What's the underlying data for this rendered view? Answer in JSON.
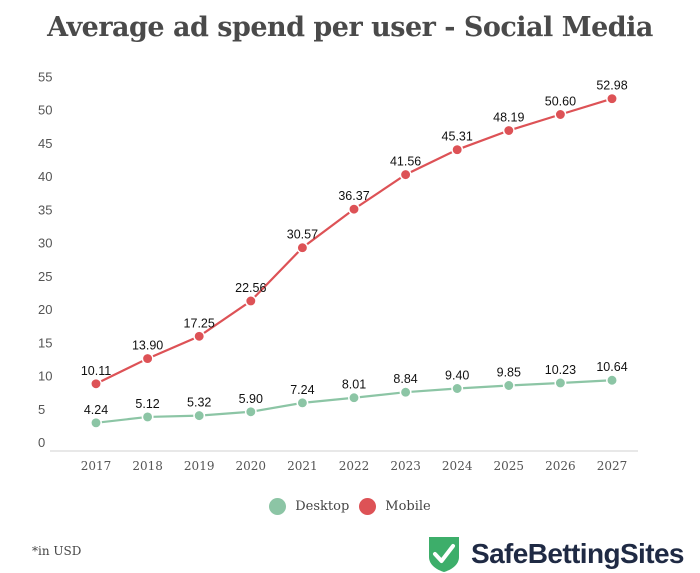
{
  "chart_data": {
    "type": "line",
    "title": "Average ad spend per user - Social Media",
    "xlabel": "",
    "ylabel": "",
    "categories": [
      "2017",
      "2018",
      "2019",
      "2020",
      "2021",
      "2022",
      "2023",
      "2024",
      "2025",
      "2026",
      "2027"
    ],
    "ylim": [
      0,
      55
    ],
    "yticks": [
      "0",
      "5",
      "10",
      "15",
      "20",
      "25",
      "30",
      "35",
      "40",
      "45",
      "50",
      "55"
    ],
    "ytick_values": [
      0,
      5,
      10,
      15,
      20,
      25,
      30,
      35,
      40,
      45,
      50,
      55
    ],
    "grid": false,
    "legend_position": "bottom-center",
    "series": [
      {
        "name": "Desktop",
        "color": "#8cc5a5",
        "values": [
          4.24,
          5.12,
          5.32,
          5.9,
          7.24,
          8.01,
          8.84,
          9.4,
          9.85,
          10.23,
          10.64
        ],
        "labels": [
          "4.24",
          "5.12",
          "5.32",
          "5.90",
          "7.24",
          "8.01",
          "8.84",
          "9.40",
          "9.85",
          "10.23",
          "10.64"
        ]
      },
      {
        "name": "Mobile",
        "color": "#dd5256",
        "values": [
          10.11,
          13.9,
          17.25,
          22.56,
          30.57,
          36.37,
          41.56,
          45.31,
          48.19,
          50.6,
          52.98
        ],
        "labels": [
          "10.11",
          "13.90",
          "17.25",
          "22.56",
          "30.57",
          "36.37",
          "41.56",
          "45.31",
          "48.19",
          "50.60",
          "52.98"
        ]
      }
    ],
    "footnote": "*in USD"
  },
  "legend": [
    {
      "label": "Desktop",
      "color": "#8cc5a5"
    },
    {
      "label": "Mobile",
      "color": "#dd5256"
    }
  ],
  "brand": {
    "name": "SafeBettingSites",
    "icon": "shield-check-icon",
    "icon_color": "#3dae6a"
  }
}
